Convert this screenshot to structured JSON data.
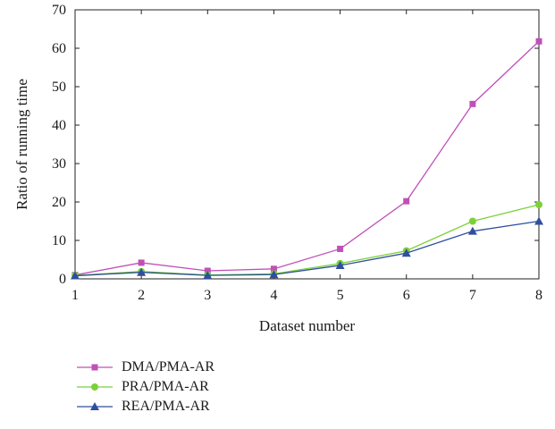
{
  "chart_data": {
    "type": "line",
    "xlabel": "Dataset number",
    "ylabel": "Ratio of running time",
    "xlim": [
      1,
      8
    ],
    "ylim": [
      0,
      70
    ],
    "x_ticks": [
      1,
      2,
      3,
      4,
      5,
      6,
      7,
      8
    ],
    "y_ticks": [
      0,
      10,
      20,
      30,
      40,
      50,
      60,
      70
    ],
    "x": [
      1,
      2,
      3,
      4,
      5,
      6,
      7,
      8
    ],
    "grid": false,
    "legend_position": "below",
    "series": [
      {
        "name": "DMA/PMA-AR",
        "color": "#c050b8",
        "marker": "square",
        "values": [
          1.0,
          4.2,
          2.1,
          2.6,
          7.8,
          20.2,
          45.5,
          61.8
        ]
      },
      {
        "name": "PRA/PMA-AR",
        "color": "#7bd13a",
        "marker": "circle",
        "values": [
          0.9,
          1.9,
          1.0,
          1.3,
          4.0,
          7.3,
          15.0,
          19.3
        ]
      },
      {
        "name": "REA/PMA-AR",
        "color": "#2f4f9e",
        "marker": "triangle",
        "values": [
          0.8,
          1.7,
          0.9,
          1.1,
          3.5,
          6.7,
          12.4,
          15.0
        ]
      }
    ]
  }
}
